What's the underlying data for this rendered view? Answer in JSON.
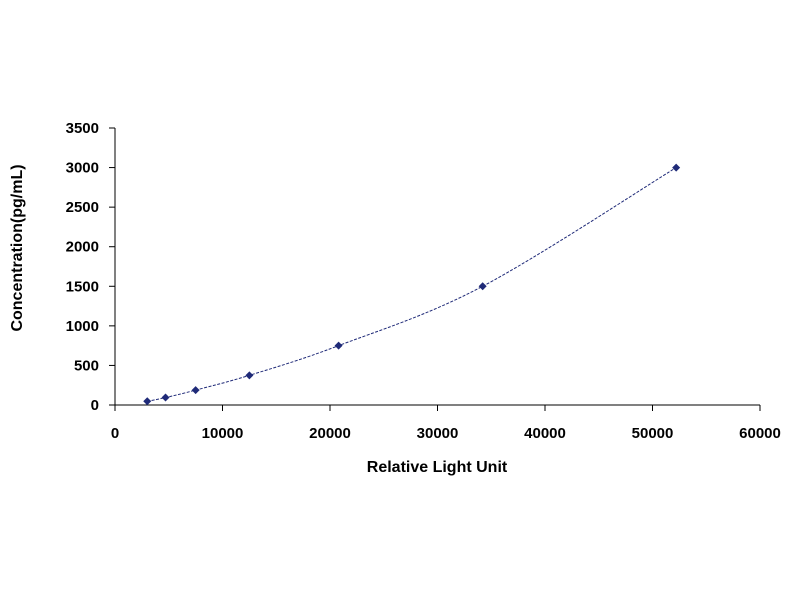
{
  "chart_data": {
    "type": "scatter",
    "title": "",
    "xlabel": "Relative Light Unit",
    "ylabel": "Concentration(pg/mL)",
    "xlim": [
      0,
      60000
    ],
    "ylim": [
      0,
      3500
    ],
    "x_ticks": [
      "0",
      "10000",
      "20000",
      "30000",
      "40000",
      "50000",
      "60000"
    ],
    "y_ticks": [
      "0",
      "500",
      "1000",
      "1500",
      "2000",
      "2500",
      "3000",
      "3500"
    ],
    "grid": false,
    "trendline": true,
    "marker_color": "#1f2a78",
    "series": [
      {
        "x": [
          3000,
          4700,
          7500,
          12500,
          20800,
          34200,
          52200
        ],
        "y": [
          47,
          94,
          188,
          375,
          750,
          1500,
          3000
        ]
      }
    ]
  }
}
